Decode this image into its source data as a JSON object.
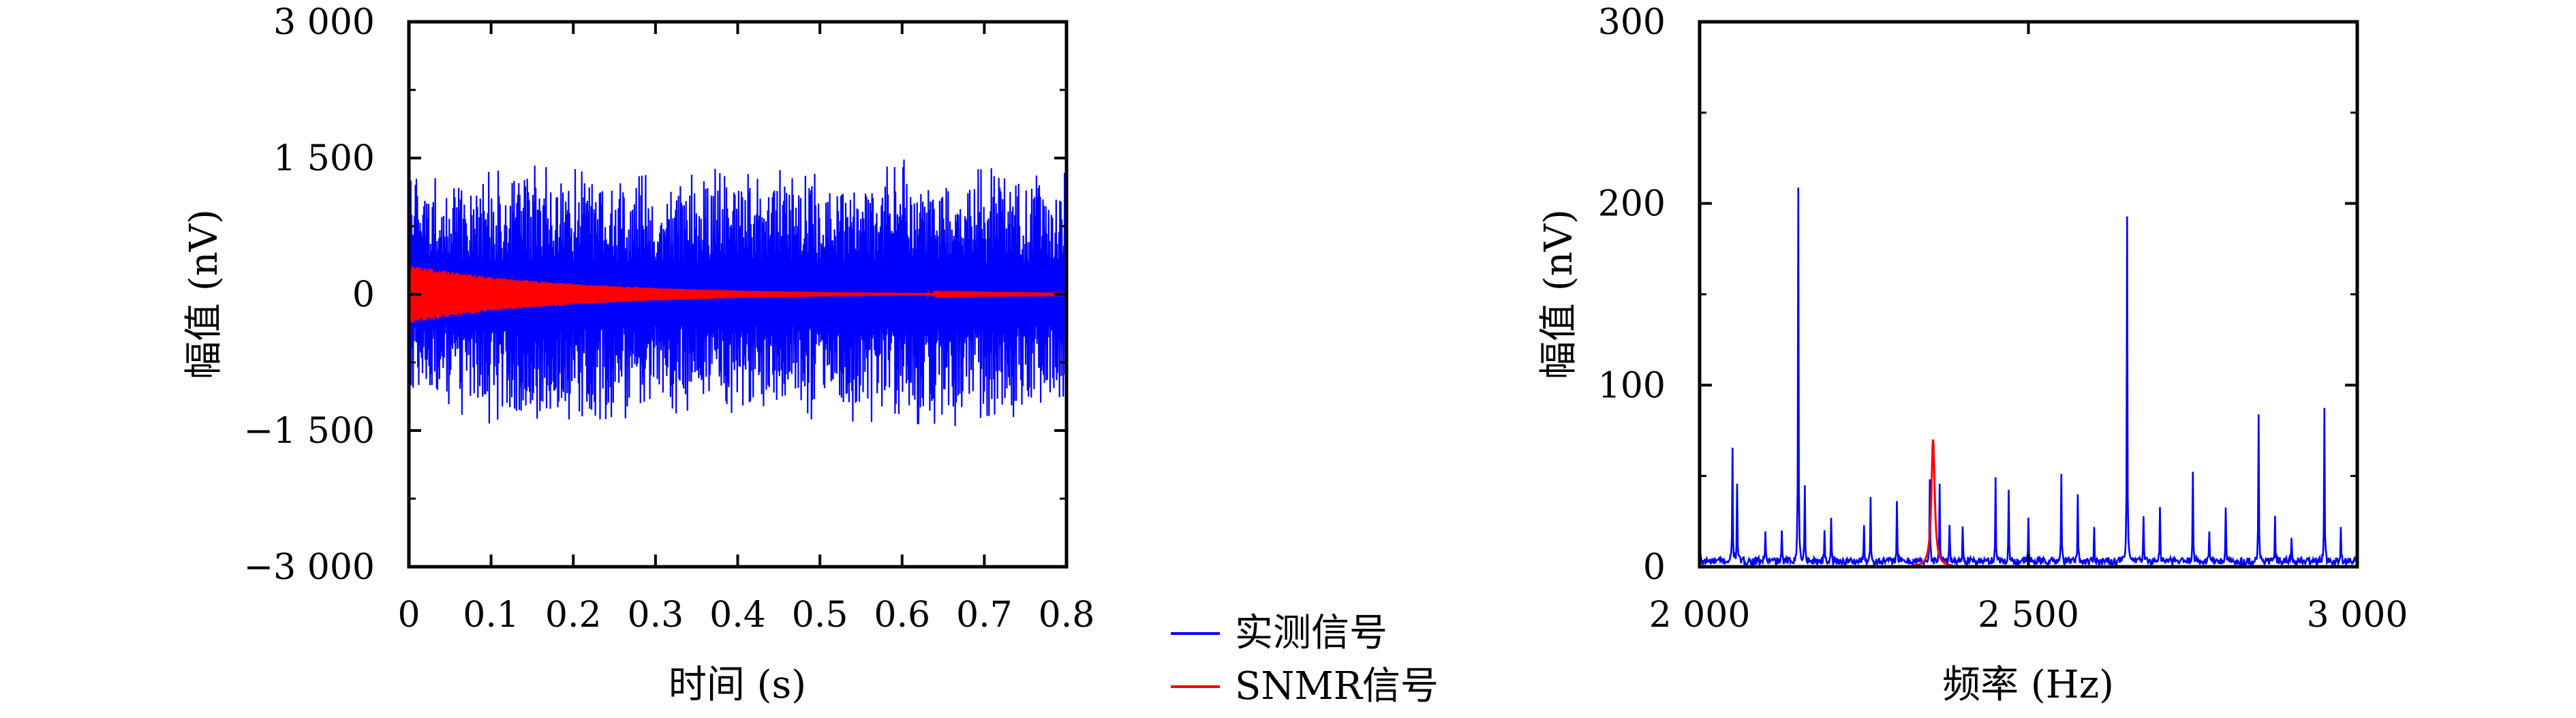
{
  "chart_data": [
    {
      "type": "line",
      "xlabel": "时间 (s)",
      "ylabel": "幅值 (nV)",
      "xlim": [
        0,
        0.8
      ],
      "ylim": [
        -3000,
        3000
      ],
      "xticks": [
        0,
        0.1,
        0.2,
        0.3,
        0.4,
        0.5,
        0.6,
        0.7,
        0.8
      ],
      "xtick_labels": [
        "0",
        "0.1",
        "0.2",
        "0.3",
        "0.4",
        "0.5",
        "0.6",
        "0.7",
        "0.8"
      ],
      "yticks": [
        3000,
        1500,
        0,
        -1500,
        -3000
      ],
      "ytick_labels": [
        "3 000",
        "1 500",
        "0",
        "−1 500",
        "−3 000"
      ],
      "series": [
        {
          "name": "实测信号",
          "color": "#0000ff",
          "description": "dense noisy oscillation, envelope peaks up to about ±1500 nV",
          "envelope_x": [
            0,
            0.1,
            0.2,
            0.3,
            0.4,
            0.5,
            0.6,
            0.7,
            0.8
          ],
          "envelope_max": [
            1300,
            1450,
            1450,
            1400,
            1400,
            1350,
            1500,
            1400,
            1400
          ],
          "envelope_min": [
            -1200,
            -1500,
            -1550,
            -1350,
            -1400,
            -1400,
            -1500,
            -1450,
            -1400
          ]
        },
        {
          "name": "SNMR信号",
          "color": "#ff0000",
          "description": "exponentially decaying oscillation",
          "envelope_x": [
            0,
            0.05,
            0.1,
            0.15,
            0.2,
            0.3,
            0.4,
            0.5,
            0.6,
            0.7,
            0.8
          ],
          "envelope_amplitude": [
            320,
            250,
            190,
            150,
            115,
            70,
            42,
            25,
            15,
            9,
            5
          ]
        }
      ]
    },
    {
      "type": "line",
      "xlabel": "频率 (Hz)",
      "ylabel": "幅值 (nV)",
      "xlim": [
        2000,
        3000
      ],
      "ylim": [
        0,
        300
      ],
      "xticks": [
        2000,
        2500,
        3000
      ],
      "xtick_labels": [
        "2 000",
        "2 500",
        "3 000"
      ],
      "yticks": [
        0,
        100,
        200,
        300
      ],
      "ytick_labels": [
        "0",
        "100",
        "200",
        "300"
      ],
      "series": [
        {
          "name": "实测信号",
          "color": "#0000ff",
          "baseline": 3,
          "peaks_x": [
            2000,
            2050,
            2057,
            2100,
            2125,
            2150,
            2160,
            2190,
            2200,
            2250,
            2260,
            2300,
            2350,
            2365,
            2380,
            2400,
            2450,
            2470,
            2500,
            2550,
            2575,
            2600,
            2650,
            2675,
            2700,
            2750,
            2775,
            2800,
            2850,
            2875,
            2900,
            2950,
            2975,
            3000
          ],
          "peaks_y": [
            20,
            62,
            44,
            18,
            15,
            205,
            42,
            18,
            22,
            20,
            35,
            32,
            44,
            42,
            22,
            20,
            46,
            38,
            24,
            48,
            36,
            18,
            190,
            26,
            30,
            50,
            18,
            28,
            81,
            23,
            14,
            83,
            20,
            18
          ]
        },
        {
          "name": "SNMR信号",
          "color": "#ff0000",
          "type_detail": "single Lorentzian peak",
          "center_x": 2355,
          "peak_y": 70
        }
      ]
    }
  ],
  "legend": {
    "placement": "between panels, bottom",
    "entries": [
      {
        "label": "实测信号",
        "color": "#0000ff"
      },
      {
        "label": "SNMR信号",
        "color": "#ff0000"
      }
    ]
  }
}
